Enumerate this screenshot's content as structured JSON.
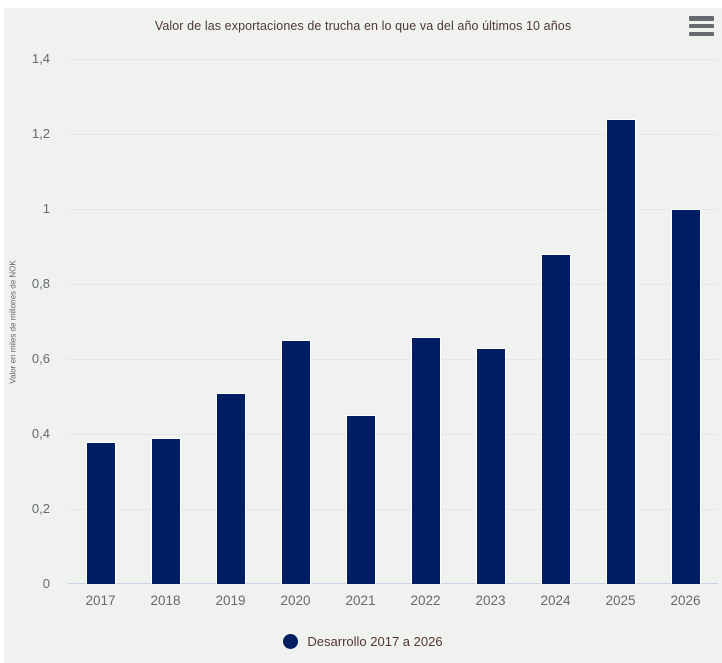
{
  "chart": {
    "background_color": "#f0f2ef",
    "title_color": "#4d3a33",
    "tick_label_color": "#66696d",
    "menu_icon": "hamburger-menu-icon"
  },
  "chart_data": {
    "type": "bar",
    "title": "Valor de las exportaciones de trucha en lo que va del año últimos 10 años",
    "xlabel": "",
    "ylabel": "Valor en miles de millones de NOK",
    "categories": [
      "2017",
      "2018",
      "2019",
      "2020",
      "2021",
      "2022",
      "2023",
      "2024",
      "2025",
      "2026"
    ],
    "values": [
      0.38,
      0.39,
      0.51,
      0.65,
      0.45,
      0.66,
      0.63,
      0.88,
      1.24,
      1.0
    ],
    "series_name": "Desarrollo 2017 a 2026",
    "ylim": [
      0,
      1.4
    ],
    "ytick_values": [
      0,
      0.2,
      0.4,
      0.6,
      0.8,
      1.0,
      1.2,
      1.4
    ],
    "ytick_labels": [
      "0",
      "0,2",
      "0,4",
      "0,6",
      "0,8",
      "1",
      "1,2",
      "1,4"
    ],
    "grid": true,
    "legend_position": "bottom",
    "bar_color": "#001f62",
    "bar_border_color": "#ffffff"
  },
  "legend": {
    "label": "Desarrollo 2017 a 2026",
    "marker_color": "#001f62",
    "text_color": "#54362c"
  }
}
